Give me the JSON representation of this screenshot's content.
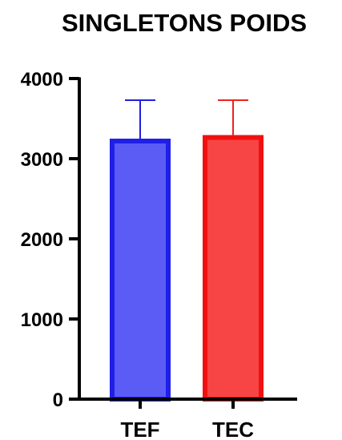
{
  "chart_data": {
    "type": "bar",
    "title": "SINGLETONS POIDS",
    "xlabel": "",
    "ylabel": "",
    "categories": [
      "TEF",
      "TEC"
    ],
    "values": [
      3220,
      3265
    ],
    "error_upper": [
      3730,
      3730
    ],
    "ylim": [
      0,
      4000
    ],
    "yticks": [
      0,
      1000,
      2000,
      3000,
      4000
    ],
    "ytick_labels": [
      "0",
      "1000",
      "2000",
      "3000",
      "4000"
    ],
    "grid": false,
    "legend": "none",
    "bar_colors": [
      {
        "fill": "#5b5cf5",
        "stroke": "#1f1fe8",
        "error": "#2020e0"
      },
      {
        "fill": "#f74545",
        "stroke": "#f01010",
        "error": "#ee2222"
      }
    ]
  }
}
